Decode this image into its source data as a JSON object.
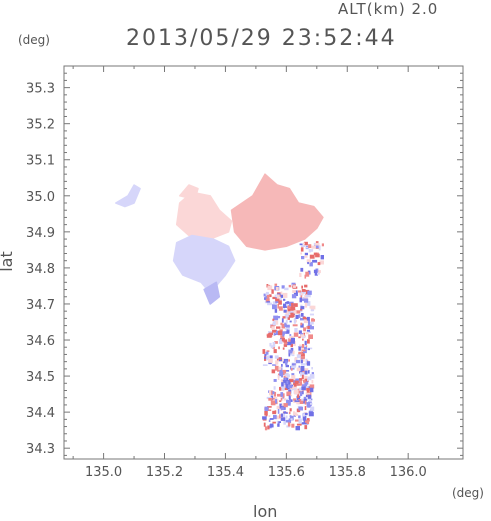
{
  "header": {
    "altitude": "ALT(km) 2.0",
    "datetime": "2013/05/29 23:52:44"
  },
  "axes": {
    "xlabel": "lon",
    "ylabel": "lat",
    "x_unit": "(deg)",
    "y_unit": "(deg)"
  },
  "chart_data": {
    "type": "heatmap",
    "xlim": [
      134.87,
      136.18
    ],
    "ylim": [
      34.27,
      35.36
    ],
    "x_ticks": [
      135.0,
      135.2,
      135.4,
      135.6,
      135.8,
      136.0
    ],
    "x_tick_labels": [
      "135.0",
      "135.2",
      "135.4",
      "135.6",
      "135.8",
      "136.0"
    ],
    "y_ticks": [
      34.3,
      34.4,
      34.5,
      34.6,
      34.7,
      34.8,
      34.9,
      35.0,
      35.1,
      35.2,
      35.3
    ],
    "y_tick_labels": [
      "34.3",
      "34.4",
      "34.5",
      "34.6",
      "34.7",
      "34.8",
      "34.9",
      "35.0",
      "35.1",
      "35.2",
      "35.3"
    ],
    "grid": false,
    "colors": {
      "positive": "#f08a8a",
      "negative": "#8f8ff0",
      "light_positive": "#fbd7d7",
      "light_negative": "#d6d6fa"
    },
    "regions": [
      {
        "sign": "positive",
        "strength": "light",
        "points": [
          [
            135.25,
            34.98
          ],
          [
            135.29,
            35.01
          ],
          [
            135.35,
            35.0
          ],
          [
            135.38,
            34.96
          ],
          [
            135.42,
            34.93
          ],
          [
            135.41,
            34.9
          ],
          [
            135.35,
            34.88
          ],
          [
            135.28,
            34.89
          ],
          [
            135.24,
            34.92
          ]
        ]
      },
      {
        "sign": "positive",
        "strength": "medium",
        "points": [
          [
            135.42,
            34.96
          ],
          [
            135.49,
            35.0
          ],
          [
            135.53,
            35.06
          ],
          [
            135.57,
            35.03
          ],
          [
            135.61,
            35.02
          ],
          [
            135.64,
            34.98
          ],
          [
            135.69,
            34.97
          ],
          [
            135.72,
            34.94
          ],
          [
            135.7,
            34.91
          ],
          [
            135.66,
            34.88
          ],
          [
            135.6,
            34.86
          ],
          [
            135.53,
            34.85
          ],
          [
            135.47,
            34.86
          ],
          [
            135.43,
            34.9
          ]
        ]
      },
      {
        "sign": "negative",
        "strength": "light",
        "points": [
          [
            135.24,
            34.87
          ],
          [
            135.29,
            34.89
          ],
          [
            135.36,
            34.88
          ],
          [
            135.41,
            34.86
          ],
          [
            135.43,
            34.82
          ],
          [
            135.4,
            34.78
          ],
          [
            135.38,
            34.76
          ],
          [
            135.35,
            34.73
          ],
          [
            135.32,
            34.76
          ],
          [
            135.26,
            34.78
          ],
          [
            135.23,
            34.82
          ]
        ]
      },
      {
        "sign": "negative",
        "strength": "light",
        "points": [
          [
            135.04,
            34.98
          ],
          [
            135.08,
            35.0
          ],
          [
            135.1,
            35.03
          ],
          [
            135.12,
            35.02
          ],
          [
            135.1,
            34.98
          ],
          [
            135.07,
            34.97
          ]
        ]
      },
      {
        "sign": "positive",
        "strength": "light",
        "points": [
          [
            135.25,
            35.0
          ],
          [
            135.28,
            35.03
          ],
          [
            135.31,
            35.02
          ],
          [
            135.3,
            34.99
          ]
        ]
      },
      {
        "sign": "negative",
        "strength": "medium",
        "points": [
          [
            135.33,
            34.74
          ],
          [
            135.35,
            34.7
          ],
          [
            135.38,
            34.72
          ],
          [
            135.37,
            34.76
          ]
        ]
      }
    ],
    "speckle_band": {
      "lon": [
        135.48,
        135.7
      ],
      "lat": [
        34.36,
        34.76
      ]
    },
    "speckle_small": [
      {
        "lon": [
          135.64,
          135.72
        ],
        "lat": [
          34.78,
          34.88
        ]
      },
      {
        "lon": [
          135.58,
          135.68
        ],
        "lat": [
          34.4,
          34.5
        ]
      }
    ]
  }
}
